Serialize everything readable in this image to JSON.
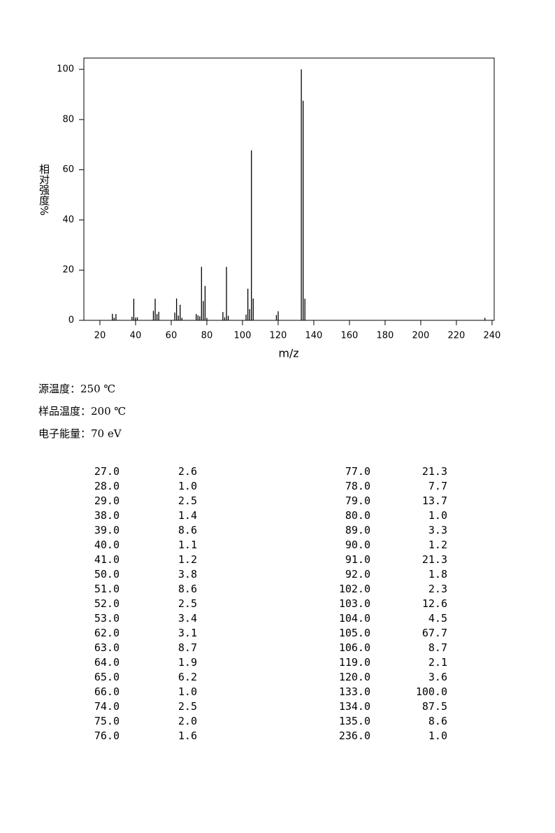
{
  "chart_data": {
    "type": "stem",
    "x_label": "m/z",
    "y_label": "相对强度%",
    "x": [
      27,
      28,
      29,
      38,
      39,
      40,
      41,
      50,
      51,
      52,
      53,
      62,
      63,
      64,
      65,
      66,
      74,
      75,
      76,
      77,
      78,
      79,
      80,
      89,
      90,
      91,
      92,
      102,
      103,
      104,
      105,
      106,
      119,
      120,
      133,
      134,
      135,
      236
    ],
    "values": [
      2.6,
      1.0,
      2.5,
      1.4,
      8.6,
      1.1,
      1.2,
      3.8,
      8.6,
      2.5,
      3.4,
      3.1,
      8.7,
      1.9,
      6.2,
      1.0,
      2.5,
      2.0,
      1.6,
      21.3,
      7.7,
      13.7,
      1.0,
      3.3,
      1.2,
      21.3,
      1.8,
      2.3,
      12.6,
      4.5,
      67.7,
      8.7,
      2.1,
      3.6,
      100.0,
      87.5,
      8.6,
      1.0
    ],
    "color": "#000000",
    "xlim": [
      11,
      241.2
    ],
    "ylim": [
      0,
      104.5
    ],
    "xticks": [
      20,
      40,
      60,
      80,
      100,
      120,
      140,
      160,
      180,
      200,
      220,
      240
    ],
    "yticks": [
      0,
      20,
      40,
      60,
      80,
      100
    ]
  },
  "conditions": [
    "源温度：250 ℃",
    "样品温度：200 ℃",
    "电子能量：70 eV"
  ],
  "peak_table": {
    "rows": [
      [
        "27.0",
        "2.6",
        "77.0",
        "21.3"
      ],
      [
        "28.0",
        "1.0",
        "78.0",
        "7.7"
      ],
      [
        "29.0",
        "2.5",
        "79.0",
        "13.7"
      ],
      [
        "38.0",
        "1.4",
        "80.0",
        "1.0"
      ],
      [
        "39.0",
        "8.6",
        "89.0",
        "3.3"
      ],
      [
        "40.0",
        "1.1",
        "90.0",
        "1.2"
      ],
      [
        "41.0",
        "1.2",
        "91.0",
        "21.3"
      ],
      [
        "50.0",
        "3.8",
        "92.0",
        "1.8"
      ],
      [
        "51.0",
        "8.6",
        "102.0",
        "2.3"
      ],
      [
        "52.0",
        "2.5",
        "103.0",
        "12.6"
      ],
      [
        "53.0",
        "3.4",
        "104.0",
        "4.5"
      ],
      [
        "62.0",
        "3.1",
        "105.0",
        "67.7"
      ],
      [
        "63.0",
        "8.7",
        "106.0",
        "8.7"
      ],
      [
        "64.0",
        "1.9",
        "119.0",
        "2.1"
      ],
      [
        "65.0",
        "6.2",
        "120.0",
        "3.6"
      ],
      [
        "66.0",
        "1.0",
        "133.0",
        "100.0"
      ],
      [
        "74.0",
        "2.5",
        "134.0",
        "87.5"
      ],
      [
        "75.0",
        "2.0",
        "135.0",
        "8.6"
      ],
      [
        "76.0",
        "1.6",
        "236.0",
        "1.0"
      ]
    ]
  }
}
